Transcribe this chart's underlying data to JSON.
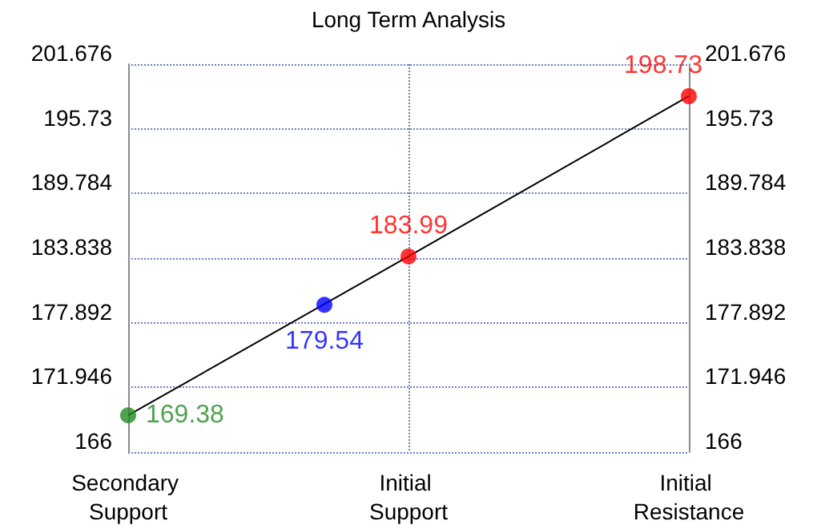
{
  "chart_data": {
    "type": "line",
    "title": "Long Term Analysis",
    "categories": [
      "Secondary Support",
      null,
      null,
      null,
      null,
      null,
      null,
      null,
      null,
      null,
      "Initial Support",
      null,
      null,
      null,
      null,
      null,
      null,
      null,
      null,
      null,
      "Initial Resistance"
    ],
    "ylim": [
      166,
      201.676
    ],
    "yticks": [
      166,
      171.946,
      177.892,
      183.838,
      189.784,
      195.73,
      201.676
    ],
    "y2lim": [
      166,
      201.676
    ],
    "y2ticks": [
      166,
      171.946,
      177.892,
      183.838,
      189.784,
      195.73,
      201.676
    ],
    "grid": true,
    "series": [
      {
        "color": "#000000",
        "marker": "none",
        "values": [
          169.38,
          null,
          null,
          null,
          null,
          null,
          null,
          null,
          null,
          null,
          183.99,
          null,
          null,
          null,
          null,
          null,
          null,
          null,
          null,
          null,
          198.73
        ]
      },
      {
        "type": "scatter",
        "color": "#228b22",
        "marker": "circle",
        "values": [
          169.38,
          null,
          null,
          null,
          null,
          null,
          null,
          null,
          null,
          null,
          null,
          null,
          null,
          null,
          null,
          null,
          null,
          null,
          null,
          null,
          null
        ],
        "value_labels": [
          "169.38",
          null,
          null,
          null,
          null,
          null,
          null,
          null,
          null,
          null,
          null,
          null,
          null,
          null,
          null,
          null,
          null,
          null,
          null,
          null,
          null
        ]
      },
      {
        "type": "scatter",
        "color": "#0000ff",
        "marker": "circle",
        "values": [
          null,
          null,
          null,
          null,
          null,
          null,
          null,
          179.54,
          null,
          null,
          null,
          null,
          null,
          null,
          null,
          null,
          null,
          null,
          null,
          null,
          null
        ],
        "value_labels": [
          null,
          null,
          null,
          null,
          null,
          null,
          null,
          "179.54",
          null,
          null,
          null,
          null,
          null,
          null,
          null,
          null,
          null,
          null,
          null,
          null,
          null
        ]
      },
      {
        "type": "scatter",
        "color": "#ff0000",
        "marker": "circle",
        "values": [
          null,
          null,
          null,
          null,
          null,
          null,
          null,
          null,
          null,
          null,
          183.99,
          null,
          null,
          null,
          null,
          null,
          null,
          null,
          null,
          null,
          198.73
        ],
        "value_labels": [
          null,
          null,
          null,
          null,
          null,
          null,
          null,
          null,
          null,
          null,
          "183.99",
          null,
          null,
          null,
          null,
          null,
          null,
          null,
          null,
          null,
          "198.73"
        ]
      }
    ]
  }
}
